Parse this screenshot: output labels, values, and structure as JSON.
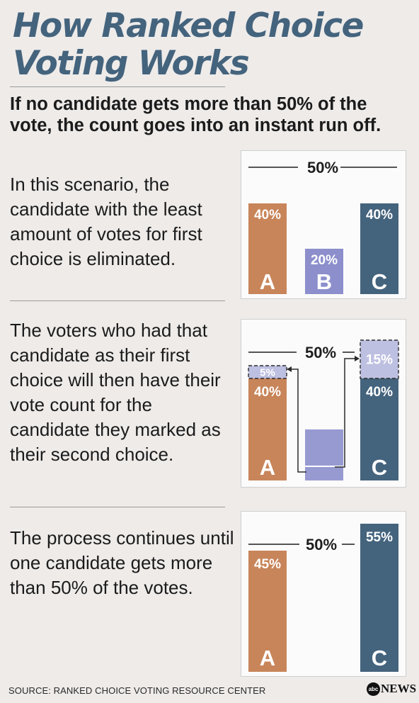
{
  "title": "How Ranked Choice Voting Works",
  "intro": "If no candidate gets more than 50% of the vote, the count goes into an instant run off.",
  "steps": [
    {
      "text": "In this scenario, the candidate with the least amount of votes for first choice is eliminated."
    },
    {
      "text": "The voters who had that candidate as their first choice will then have their vote count for the candidate they marked as their second choice."
    },
    {
      "text": "The process continues until one candidate gets more than 50% of the votes."
    }
  ],
  "threshold_label": "50%",
  "colors": {
    "A": "#c8855a",
    "B": "#8c8fcc",
    "C": "#44637d",
    "title": "#44637d"
  },
  "chart_data": [
    {
      "type": "bar",
      "categories": [
        "A",
        "B",
        "C"
      ],
      "values": [
        40,
        20,
        40
      ],
      "labels": [
        "40%",
        "20%",
        "40%"
      ],
      "threshold": 50
    },
    {
      "type": "bar",
      "stacked": true,
      "categories": [
        "A",
        "B",
        "C"
      ],
      "base_values": [
        40,
        20,
        40
      ],
      "base_labels": [
        "40%",
        "",
        "40%"
      ],
      "transferred_values": [
        5,
        0,
        15
      ],
      "transferred_labels": [
        "5%",
        "",
        "15%"
      ],
      "threshold": 50
    },
    {
      "type": "bar",
      "categories": [
        "A",
        "C"
      ],
      "values": [
        45,
        55
      ],
      "labels": [
        "45%",
        "55%"
      ],
      "threshold": 50
    }
  ],
  "source": "SOURCE: RANKED CHOICE VOTING RESOURCE CENTER",
  "logo": {
    "mark": "abc",
    "text": "NEWS"
  }
}
